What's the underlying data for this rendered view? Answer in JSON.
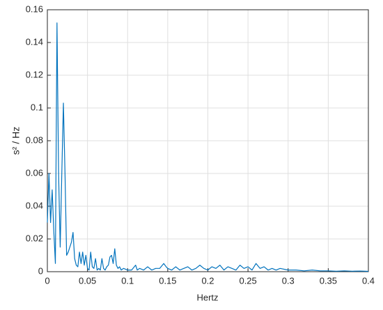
{
  "chart_data": {
    "type": "line",
    "x_label": "Hertz",
    "y_label": "s² / Hz",
    "x": [
      0,
      0.002,
      0.004,
      0.006,
      0.008,
      0.01,
      0.012,
      0.014,
      0.016,
      0.018,
      0.02,
      0.022,
      0.024,
      0.026,
      0.028,
      0.03,
      0.032,
      0.034,
      0.036,
      0.038,
      0.04,
      0.042,
      0.044,
      0.046,
      0.048,
      0.05,
      0.052,
      0.054,
      0.056,
      0.058,
      0.06,
      0.062,
      0.064,
      0.066,
      0.068,
      0.07,
      0.072,
      0.074,
      0.076,
      0.078,
      0.08,
      0.082,
      0.084,
      0.086,
      0.088,
      0.09,
      0.092,
      0.095,
      0.1,
      0.105,
      0.11,
      0.112,
      0.115,
      0.12,
      0.125,
      0.13,
      0.135,
      0.14,
      0.145,
      0.148,
      0.15,
      0.155,
      0.16,
      0.165,
      0.17,
      0.175,
      0.18,
      0.185,
      0.19,
      0.195,
      0.2,
      0.205,
      0.21,
      0.215,
      0.22,
      0.225,
      0.23,
      0.235,
      0.24,
      0.245,
      0.25,
      0.255,
      0.26,
      0.265,
      0.27,
      0.275,
      0.28,
      0.285,
      0.29,
      0.3,
      0.31,
      0.32,
      0.33,
      0.34,
      0.35,
      0.36,
      0.37,
      0.38,
      0.39,
      0.4
    ],
    "values": [
      0.03,
      0.06,
      0.03,
      0.05,
      0.025,
      0.005,
      0.152,
      0.06,
      0.015,
      0.06,
      0.103,
      0.06,
      0.01,
      0.012,
      0.015,
      0.018,
      0.024,
      0.008,
      0.004,
      0.003,
      0.012,
      0.005,
      0.012,
      0.004,
      0.01,
      0.002,
      0.001,
      0.012,
      0.003,
      0.002,
      0.008,
      0.001,
      0.002,
      0.001,
      0.008,
      0.002,
      0.001,
      0.003,
      0.004,
      0.009,
      0.01,
      0.005,
      0.014,
      0.004,
      0.002,
      0.003,
      0.001,
      0.002,
      0.001,
      0.001,
      0.004,
      0.001,
      0.002,
      0.001,
      0.003,
      0.001,
      0.002,
      0.002,
      0.005,
      0.003,
      0.002,
      0.001,
      0.003,
      0.001,
      0.002,
      0.003,
      0.001,
      0.002,
      0.004,
      0.002,
      0.001,
      0.003,
      0.002,
      0.004,
      0.001,
      0.003,
      0.002,
      0.001,
      0.004,
      0.002,
      0.003,
      0.001,
      0.005,
      0.002,
      0.003,
      0.001,
      0.002,
      0.001,
      0.002,
      0.001,
      0.001,
      0.0005,
      0.001,
      0.0005,
      0.0005,
      0.0003,
      0.0005,
      0.0003,
      0.0004,
      0.0002
    ],
    "color": "#0072bd",
    "xlim": [
      0,
      0.4
    ],
    "xticks": [
      0,
      0.05,
      0.1,
      0.15,
      0.2,
      0.25,
      0.3,
      0.35,
      0.4
    ],
    "ylim": [
      0,
      0.16
    ],
    "yticks": [
      0,
      0.02,
      0.04,
      0.06,
      0.08,
      0.1,
      0.12,
      0.14,
      0.16
    ],
    "grid": true
  }
}
